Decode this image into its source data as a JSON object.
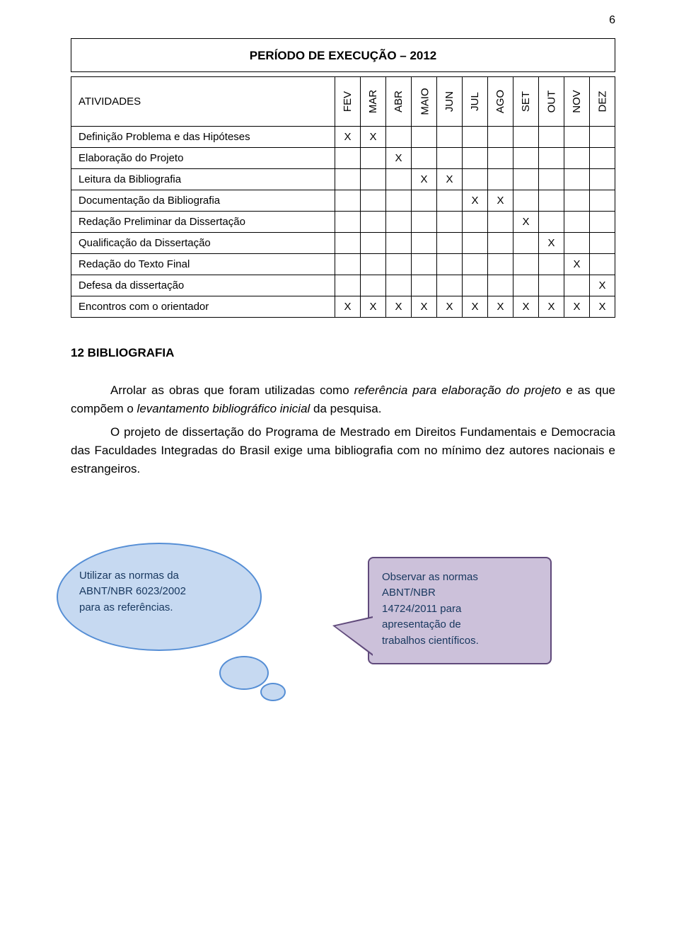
{
  "page_number": "6",
  "schedule": {
    "title": "PERÍODO DE EXECUÇÃO – 2012",
    "activity_header": "ATIVIDADES",
    "months": [
      "FEV",
      "MAR",
      "ABR",
      "MAIO",
      "JUN",
      "JUL",
      "AGO",
      "SET",
      "OUT",
      "NOV",
      "DEZ"
    ],
    "rows": [
      {
        "label": "Definição Problema e das Hipóteses",
        "marks": [
          "X",
          "X",
          "",
          "",
          "",
          "",
          "",
          "",
          "",
          "",
          ""
        ]
      },
      {
        "label": "Elaboração do Projeto",
        "marks": [
          "",
          "",
          "X",
          "",
          "",
          "",
          "",
          "",
          "",
          "",
          ""
        ]
      },
      {
        "label": "Leitura da Bibliografia",
        "marks": [
          "",
          "",
          "",
          "X",
          "X",
          "",
          "",
          "",
          "",
          "",
          ""
        ]
      },
      {
        "label": "Documentação da Bibliografia",
        "marks": [
          "",
          "",
          "",
          "",
          "",
          "X",
          "X",
          "",
          "",
          "",
          ""
        ]
      },
      {
        "label": "Redação Preliminar da Dissertação",
        "marks": [
          "",
          "",
          "",
          "",
          "",
          "",
          "",
          "X",
          "",
          "",
          ""
        ]
      },
      {
        "label": "Qualificação da Dissertação",
        "marks": [
          "",
          "",
          "",
          "",
          "",
          "",
          "",
          "",
          "X",
          "",
          ""
        ]
      },
      {
        "label": "Redação do Texto Final",
        "marks": [
          "",
          "",
          "",
          "",
          "",
          "",
          "",
          "",
          "",
          "X",
          ""
        ]
      },
      {
        "label": "Defesa da dissertação",
        "marks": [
          "",
          "",
          "",
          "",
          "",
          "",
          "",
          "",
          "",
          "",
          "X"
        ]
      },
      {
        "label": "Encontros com o orientador",
        "marks": [
          "X",
          "X",
          "X",
          "X",
          "X",
          "X",
          "X",
          "X",
          "X",
          "X",
          "X"
        ]
      }
    ]
  },
  "section": {
    "heading": "12 BIBLIOGRAFIA",
    "para1_a": "Arrolar as obras que foram utilizadas como ",
    "para1_i1": "referência para elaboração do projeto",
    "para1_b": " e as que compõem o ",
    "para1_i2": "levantamento bibliográfico inicial",
    "para1_c": " da pesquisa.",
    "para2": "O projeto de dissertação do Programa de Mestrado em Direitos Fundamentais e Democracia das Faculdades Integradas do Brasil exige uma bibliografia com no mínimo dez autores nacionais e estrangeiros."
  },
  "callout_left": {
    "l1": "Utilizar as normas da",
    "l2": "ABNT/NBR 6023/2002",
    "l3": "para as referências."
  },
  "callout_right": {
    "l1": "Observar as normas",
    "l2": "ABNT/NBR",
    "l3": "14724/2011 para",
    "l4": "apresentação de",
    "l5": "trabalhos científicos."
  },
  "colors": {
    "oval_fill": "#c6d9f1",
    "oval_border": "#558ed5",
    "rect_fill": "#ccc1da",
    "rect_border": "#604a7b",
    "callout_text": "#17375e"
  }
}
